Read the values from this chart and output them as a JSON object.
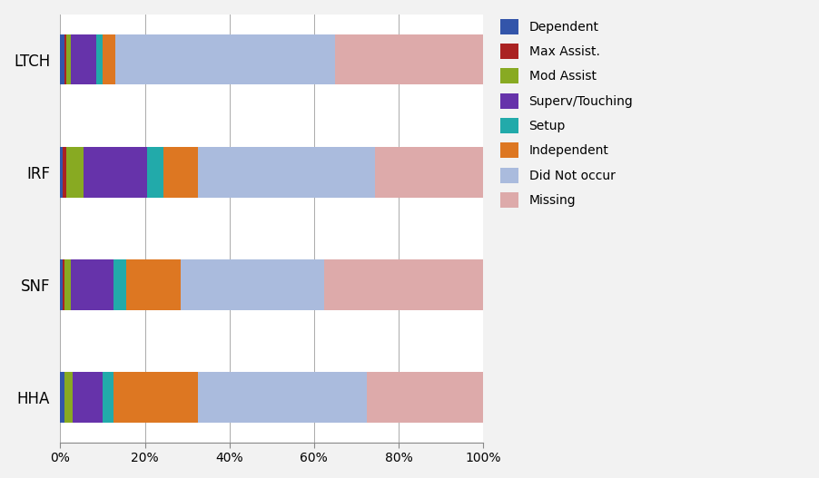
{
  "categories": [
    "LTCH",
    "IRF",
    "SNF",
    "HHA"
  ],
  "series_order": [
    "Dependent",
    "Max Assist.",
    "Mod Assist",
    "Superv/Touching",
    "Setup",
    "Independent",
    "Did Not occur",
    "Missing"
  ],
  "series": {
    "Dependent": [
      1.0,
      0.5,
      0.5,
      1.0
    ],
    "Max Assist.": [
      0.5,
      1.0,
      0.5,
      0.0
    ],
    "Mod Assist": [
      1.0,
      4.0,
      1.5,
      2.0
    ],
    "Superv/Touching": [
      6.0,
      15.0,
      10.0,
      7.0
    ],
    "Setup": [
      1.5,
      4.0,
      3.0,
      2.5
    ],
    "Independent": [
      3.0,
      8.0,
      13.0,
      20.0
    ],
    "Did Not occur": [
      52.0,
      42.0,
      34.0,
      40.0
    ],
    "Missing": [
      35.0,
      25.5,
      37.5,
      27.5
    ]
  },
  "colors": {
    "Dependent": "#3355AA",
    "Max Assist.": "#AA2222",
    "Mod Assist": "#88AA22",
    "Superv/Touching": "#6633AA",
    "Setup": "#22AAAA",
    "Independent": "#DD7722",
    "Did Not occur": "#AABBDD",
    "Missing": "#DDAAAA"
  },
  "background_color": "#F2F2F2",
  "plot_bg_color": "#FFFFFF",
  "xlim": [
    0,
    100
  ],
  "bar_height": 0.45,
  "figsize": [
    9.02,
    5.27
  ],
  "dpi": 100
}
